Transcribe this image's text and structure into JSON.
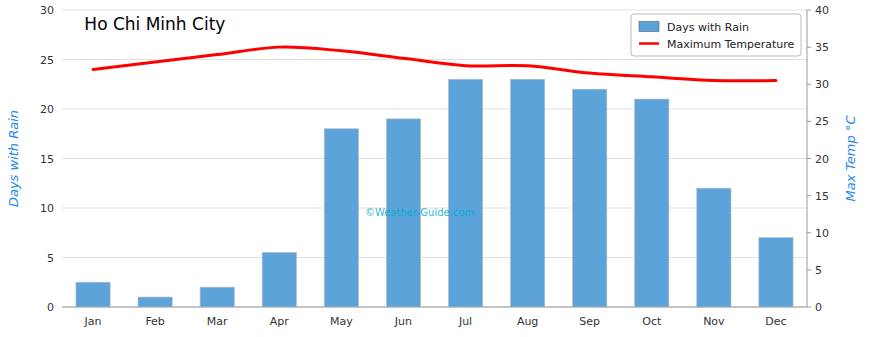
{
  "chart_data": {
    "type": "bar",
    "title": "Ho Chi Minh City",
    "categories": [
      "Jan",
      "Feb",
      "Mar",
      "Apr",
      "May",
      "Jun",
      "Jul",
      "Aug",
      "Sep",
      "Oct",
      "Nov",
      "Dec"
    ],
    "series": [
      {
        "name": "Days with Rain",
        "type": "bar",
        "color": "#5BA3D9",
        "values": [
          2.5,
          1.0,
          2.0,
          5.5,
          18.0,
          19.0,
          23.0,
          23.0,
          22.0,
          21.0,
          12.0,
          7.0
        ]
      },
      {
        "name": "Maximum Temperature",
        "type": "line",
        "axis": "y2",
        "color": "red",
        "values": [
          32,
          33,
          34,
          35,
          34.5,
          33.5,
          32.5,
          32.5,
          31.5,
          31.0,
          30.5,
          30.5
        ]
      }
    ],
    "ylabel": "Days with Rain",
    "y2label": "Max Temp °C",
    "ylim": [
      0,
      30
    ],
    "yticks": [
      0,
      5,
      10,
      15,
      20,
      25,
      30
    ],
    "y2lim": [
      0,
      40
    ],
    "y2ticks": [
      0,
      5,
      10,
      15,
      20,
      25,
      30,
      35,
      40
    ],
    "grid": true,
    "legend": "upper right",
    "annotations": [
      "©Weather-Guide.com"
    ]
  }
}
